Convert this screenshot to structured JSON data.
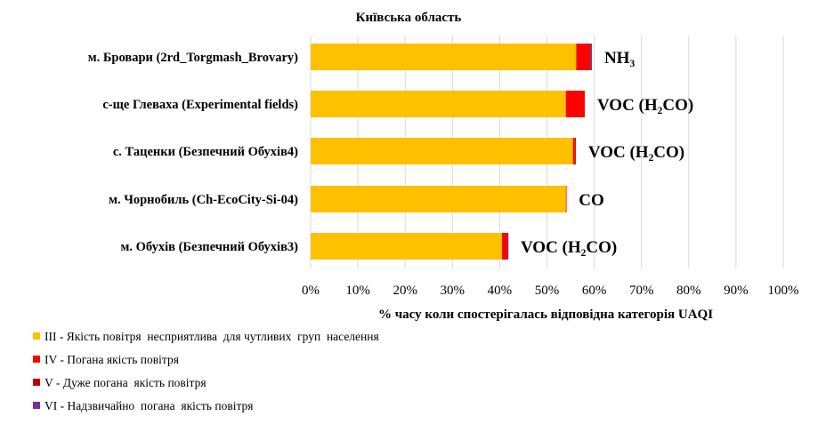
{
  "chart_data": {
    "type": "bar",
    "orientation": "horizontal",
    "stacked": true,
    "title": "Київська область",
    "xlabel": "% часу коли спостерігалась відповідна категорія UAQI",
    "ylabel": "",
    "xlim": [
      0,
      100
    ],
    "x_ticks": [
      "0%",
      "10%",
      "20%",
      "30%",
      "40%",
      "50%",
      "60%",
      "70%",
      "80%",
      "90%",
      "100%"
    ],
    "grid": true,
    "legend_position": "bottom-left",
    "categories": [
      "м. Бровари (2rd_Torgmash_Brovary)",
      "с-ще Глеваха (Experimental fields)",
      "с. Таценки (Безпечний Обухів4)",
      "м. Чорнобиль (Ch-EcoCity-Si-04)",
      "м. Обухів (Безпечний Обухів3)"
    ],
    "annotations": [
      "NH₃",
      "VOC (H₂CO)",
      "VOC (H₂CO)",
      "CO",
      "VOC (H₂CO)"
    ],
    "series": [
      {
        "name": "III - Якість повітря  несприятлива  для чутливих  груп  населення",
        "color": "#FFC000",
        "values": [
          56.2,
          54.0,
          55.5,
          54.0,
          40.5
        ]
      },
      {
        "name": "IV - Погана якість повітря",
        "color": "#FF0000",
        "values": [
          2.8,
          4.0,
          0.4,
          0.1,
          1.0
        ]
      },
      {
        "name": "V - Дуже погана  якість повітря",
        "color": "#C00000",
        "values": [
          0.3,
          0.0,
          0.2,
          0.0,
          0.2
        ]
      },
      {
        "name": "VI - Надзвичайно  погана  якість повітря",
        "color": "#7030A0",
        "values": [
          0.2,
          0.0,
          0.0,
          0.0,
          0.1
        ]
      }
    ]
  }
}
